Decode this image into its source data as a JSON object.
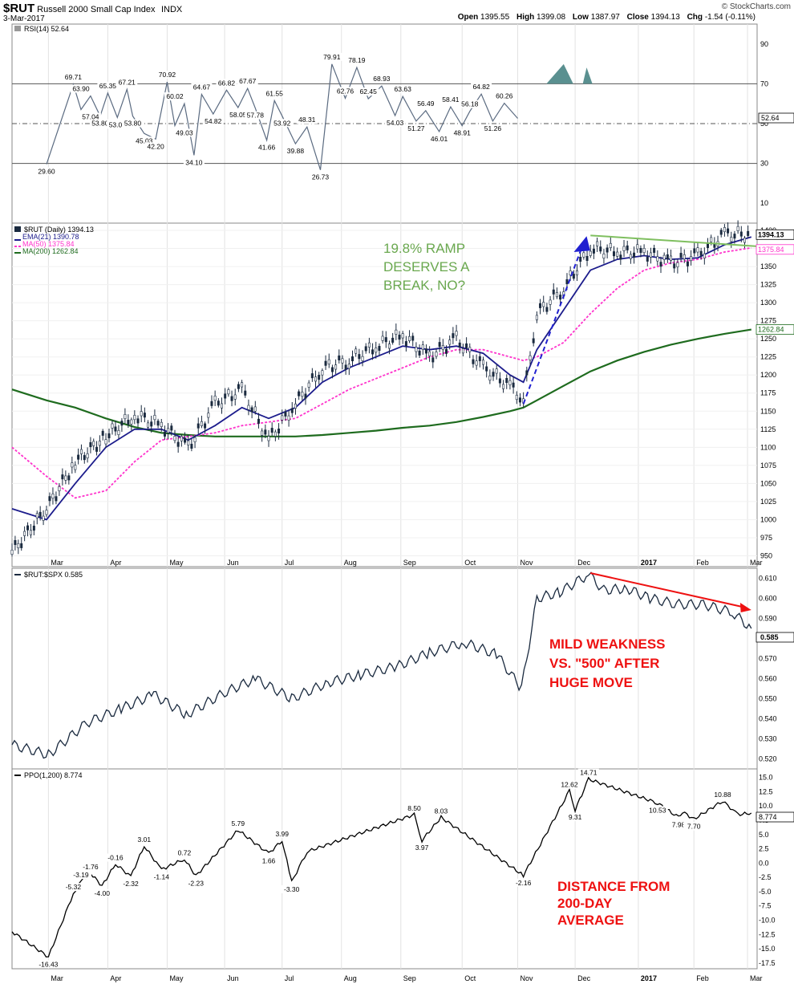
{
  "header": {
    "symbol": "$RUT",
    "name": "Russell 2000 Small Cap Index",
    "exchange": "INDX",
    "date": "3-Mar-2017",
    "open_label": "Open",
    "open": "1395.55",
    "high_label": "High",
    "high": "1399.08",
    "low_label": "Low",
    "low": "1387.97",
    "close_label": "Close",
    "close": "1394.13",
    "chg_label": "Chg",
    "chg": "-1.54 (-0.11%)",
    "logo": "© StockCharts.com"
  },
  "x_months": [
    "Mar",
    "Apr",
    "May",
    "Jun",
    "Jul",
    "Aug",
    "Sep",
    "Oct",
    "Nov",
    "Dec",
    "2017",
    "Feb",
    "Mar"
  ],
  "annotations": {
    "ramp": [
      "19.8% RAMP",
      "DESERVES A",
      "BREAK, NO?"
    ],
    "weakness": [
      "MILD WEAKNESS",
      "VS. \"500\" AFTER",
      "HUGE MOVE"
    ],
    "distance": [
      "DISTANCE FROM",
      "200-DAY",
      "AVERAGE"
    ]
  },
  "colors": {
    "price": "#1a2a3f",
    "ema21": "#1c1c8c",
    "ma50": "#ff33cc",
    "ma200": "#1e6b1e",
    "trend": "#7fbf5f",
    "ramp": "#2020d0",
    "ratio_arrow": "#ee1111",
    "annotation_green": "#6aa84f",
    "annotation_red": "#ee1111"
  },
  "chart_data": [
    {
      "type": "line",
      "title": "RSI(14) 52.64",
      "legend": "RSI(14) 52.64",
      "ylim": [
        0,
        100
      ],
      "yticks": [
        "90",
        "70",
        "50",
        "30",
        "10"
      ],
      "reference_lines": [
        70,
        50,
        30
      ],
      "last_value": "52.64",
      "x": [
        "2016-02-29",
        "2016-03-14",
        "2016-03-18",
        "2016-03-23",
        "2016-03-28",
        "2016-04-01",
        "2016-04-06",
        "2016-04-11",
        "2016-04-14",
        "2016-04-20",
        "2016-04-26",
        "2016-05-02",
        "2016-05-06",
        "2016-05-11",
        "2016-05-16",
        "2016-05-20",
        "2016-05-26",
        "2016-06-02",
        "2016-06-08",
        "2016-06-13",
        "2016-06-17",
        "2016-06-23",
        "2016-06-27",
        "2016-07-01",
        "2016-07-08",
        "2016-07-14",
        "2016-07-21",
        "2016-07-27",
        "2016-08-03",
        "2016-08-09",
        "2016-08-15",
        "2016-08-22",
        "2016-08-29",
        "2016-09-02",
        "2016-09-09",
        "2016-09-14",
        "2016-09-21",
        "2016-09-27",
        "2016-10-03",
        "2016-10-07",
        "2016-10-13",
        "2016-10-19",
        "2016-10-25",
        "2016-11-01",
        "2016-11-04",
        "2016-11-10",
        "2016-11-18",
        "2016-11-25",
        "2016-12-01",
        "2016-12-07",
        "2016-12-13",
        "2016-12-19",
        "2016-12-28",
        "2017-01-04",
        "2017-01-10",
        "2017-01-13",
        "2017-01-19",
        "2017-01-26",
        "2017-02-01",
        "2017-02-06",
        "2017-02-13",
        "2017-02-17",
        "2017-02-23",
        "2017-02-28",
        "2017-03-03"
      ],
      "series": [
        {
          "values": [
            29.6,
            69.71,
            57.04,
            63.9,
            53.8,
            65.35,
            53.08,
            67.21,
            53.8,
            45.03,
            42.2,
            70.92,
            49.03,
            60.02,
            34.1,
            64.67,
            54.82,
            66.82,
            58.05,
            67.67,
            57.78,
            41.66,
            61.55,
            53.92,
            39.88,
            48.31,
            26.73,
            79.91,
            62.76,
            78.19,
            62.45,
            68.93,
            54.03,
            63.63,
            51.27,
            56.49,
            46.01,
            58.41,
            48.91,
            56.18,
            64.82,
            51.26,
            60.26,
            52.64,
            52.64,
            52.64,
            52.64,
            52.64,
            52.64,
            52.64,
            52.64,
            52.64,
            52.64,
            52.64,
            52.64,
            52.64,
            52.64,
            52.64,
            52.64,
            52.64,
            52.64,
            52.64,
            52.64,
            52.64,
            52.64
          ]
        }
      ],
      "labels": [
        "29.60",
        "69.71",
        "63.90",
        "57.04",
        "53.80",
        "65.35",
        "53.08",
        "67.21",
        "53.80",
        "45.03",
        "42.20",
        "70.92",
        "60.02",
        "49.03",
        "34.10",
        "64.67",
        "54.82",
        "66.82",
        "58.05",
        "67.67",
        "57.78",
        "41.66",
        "61.55",
        "53.92",
        "39.88",
        "48.31",
        "26.73",
        "79.91",
        "62.76",
        "78.19",
        "62.45",
        "68.93",
        "54.03",
        "63.63",
        "51.27",
        "56.49",
        "46.01",
        "58.41",
        "48.91",
        "56.18",
        "64.82",
        "51.26",
        "60.26"
      ]
    },
    {
      "type": "line",
      "title": "$RUT (Daily) 1394.13",
      "ylim": [
        935,
        1410
      ],
      "yticks": [
        "1400",
        "1375",
        "1350",
        "1325",
        "1300",
        "1275",
        "1250",
        "1225",
        "1200",
        "1175",
        "1150",
        "1125",
        "1100",
        "1075",
        "1050",
        "1025",
        "1000",
        "975",
        "950"
      ],
      "legend": [
        "$RUT (Daily) 1394.13",
        "EMA(21) 1390.78",
        "MA(50) 1375.84",
        "MA(200) 1262.84"
      ],
      "right_labels": [
        "1394.13",
        "1375.84",
        "1262.84"
      ],
      "x": [
        "2016-02-11",
        "2016-02-29",
        "2016-03-15",
        "2016-03-31",
        "2016-04-15",
        "2016-04-29",
        "2016-05-13",
        "2016-05-27",
        "2016-06-10",
        "2016-06-24",
        "2016-07-08",
        "2016-07-22",
        "2016-08-05",
        "2016-08-19",
        "2016-09-02",
        "2016-09-16",
        "2016-09-30",
        "2016-10-14",
        "2016-10-28",
        "2016-11-04",
        "2016-11-11",
        "2016-11-25",
        "2016-12-09",
        "2016-12-23",
        "2017-01-06",
        "2017-01-20",
        "2017-02-03",
        "2017-02-17",
        "2017-03-03"
      ],
      "series": [
        {
          "name": "$RUT (Daily) 1394.13",
          "values": [
            955,
            1015,
            1080,
            1115,
            1145,
            1130,
            1100,
            1160,
            1180,
            1110,
            1160,
            1210,
            1220,
            1240,
            1255,
            1225,
            1250,
            1210,
            1185,
            1165,
            1285,
            1320,
            1375,
            1370,
            1370,
            1355,
            1365,
            1395,
            1394
          ]
        },
        {
          "name": "EMA(21) 1390.78",
          "values": [
            1015,
            1000,
            1050,
            1100,
            1125,
            1125,
            1110,
            1130,
            1155,
            1140,
            1155,
            1190,
            1210,
            1225,
            1240,
            1235,
            1240,
            1230,
            1200,
            1190,
            1235,
            1290,
            1345,
            1360,
            1365,
            1360,
            1362,
            1380,
            1390.78
          ]
        },
        {
          "name": "MA(50) 1375.84",
          "values": [
            1100,
            1060,
            1030,
            1040,
            1080,
            1110,
            1115,
            1120,
            1130,
            1135,
            1140,
            1160,
            1180,
            1195,
            1210,
            1225,
            1235,
            1235,
            1225,
            1220,
            1225,
            1245,
            1285,
            1320,
            1345,
            1355,
            1360,
            1370,
            1375.84
          ]
        },
        {
          "name": "MA(200) 1262.84",
          "values": [
            1180,
            1165,
            1155,
            1140,
            1128,
            1120,
            1117,
            1115,
            1115,
            1115,
            1115,
            1117,
            1120,
            1123,
            1127,
            1130,
            1135,
            1142,
            1150,
            1155,
            1165,
            1185,
            1205,
            1220,
            1232,
            1242,
            1250,
            1257,
            1262.84
          ]
        }
      ]
    },
    {
      "type": "line",
      "title": "$RUT:$SPX 0.585",
      "ylim": [
        0.515,
        0.615
      ],
      "yticks": [
        "0.610",
        "0.600",
        "0.590",
        "0.580",
        "0.570",
        "0.560",
        "0.550",
        "0.540",
        "0.530",
        "0.520"
      ],
      "last_value": "0.585",
      "x": [
        "2016-02-11",
        "2016-03-01",
        "2016-03-21",
        "2016-04-08",
        "2016-04-25",
        "2016-05-12",
        "2016-06-01",
        "2016-06-17",
        "2016-07-06",
        "2016-07-25",
        "2016-08-11",
        "2016-08-30",
        "2016-09-16",
        "2016-10-04",
        "2016-10-21",
        "2016-11-03",
        "2016-11-11",
        "2016-11-23",
        "2016-12-08",
        "2016-12-16",
        "2016-12-28",
        "2017-01-09",
        "2017-01-23",
        "2017-02-06",
        "2017-02-21",
        "2017-03-03"
      ],
      "series": [
        {
          "name": "$RUT:$SPX 0.585",
          "values": [
            0.527,
            0.522,
            0.538,
            0.545,
            0.552,
            0.542,
            0.553,
            0.56,
            0.55,
            0.558,
            0.562,
            0.566,
            0.573,
            0.578,
            0.572,
            0.555,
            0.6,
            0.603,
            0.612,
            0.604,
            0.605,
            0.6,
            0.597,
            0.597,
            0.593,
            0.585
          ]
        }
      ]
    },
    {
      "type": "line",
      "title": "PPO(1,200) 8.774",
      "ylim": [
        -18.5,
        16.5
      ],
      "yticks": [
        "15.0",
        "12.5",
        "10.0",
        "7.5",
        "5.0",
        "2.5",
        "0.0",
        "-2.5",
        "-5.0",
        "-7.5",
        "-10.0",
        "-12.5",
        "-15.0",
        "-17.5"
      ],
      "last_value": "8.774",
      "x": [
        "2016-02-11",
        "2016-03-01",
        "2016-03-14",
        "2016-03-18",
        "2016-03-23",
        "2016-03-29",
        "2016-04-05",
        "2016-04-13",
        "2016-04-20",
        "2016-04-29",
        "2016-05-11",
        "2016-05-17",
        "2016-06-08",
        "2016-06-24",
        "2016-07-01",
        "2016-07-06",
        "2016-07-14",
        "2016-09-08",
        "2016-09-12",
        "2016-09-22",
        "2016-11-04",
        "2016-11-28",
        "2016-12-01",
        "2016-12-08",
        "2017-01-13",
        "2017-01-24",
        "2017-01-26",
        "2017-02-01",
        "2017-02-16",
        "2017-02-24",
        "2017-03-03"
      ],
      "series": [
        {
          "name": "PPO(1,200) 8.774",
          "values": [
            -12.0,
            -16.43,
            -5.32,
            -3.19,
            -1.76,
            -4.0,
            -0.16,
            -2.32,
            3.01,
            -1.14,
            0.72,
            -2.23,
            5.79,
            1.66,
            3.99,
            -3.3,
            2.0,
            8.5,
            3.97,
            8.03,
            -2.16,
            12.62,
            9.31,
            14.71,
            10.53,
            7.98,
            9.0,
            7.7,
            10.88,
            8.5,
            8.774
          ]
        }
      ],
      "labels": [
        "-16.43",
        "-5.32",
        "-3.19",
        "-1.76",
        "-4.00",
        "-0.16",
        "-2.32",
        "3.01",
        "-1.14",
        "0.72",
        "-2.23",
        "5.79",
        "1.66",
        "3.99",
        "-3.30",
        "8.50",
        "3.97",
        "8.03",
        "-2.16",
        "12.62",
        "9.31",
        "14.71",
        "10.53",
        "7.98",
        "7.70",
        "10.88",
        "8.50"
      ]
    }
  ]
}
